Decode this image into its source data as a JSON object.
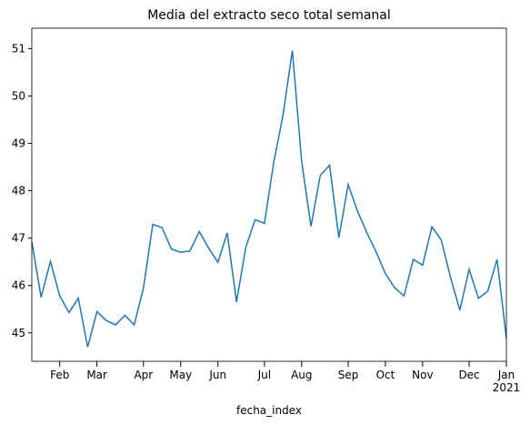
{
  "chart_data": {
    "type": "line",
    "title": "Media del extracto seco total semanal",
    "xlabel": "fecha_index",
    "x": [
      "2020-01-12",
      "2020-01-19",
      "2020-01-26",
      "2020-02-02",
      "2020-02-09",
      "2020-02-16",
      "2020-02-23",
      "2020-03-01",
      "2020-03-08",
      "2020-03-15",
      "2020-03-22",
      "2020-03-29",
      "2020-04-05",
      "2020-04-12",
      "2020-04-19",
      "2020-04-26",
      "2020-05-03",
      "2020-05-10",
      "2020-05-17",
      "2020-05-24",
      "2020-05-31",
      "2020-06-07",
      "2020-06-14",
      "2020-06-21",
      "2020-06-28",
      "2020-07-05",
      "2020-07-12",
      "2020-07-19",
      "2020-07-26",
      "2020-08-02",
      "2020-08-09",
      "2020-08-16",
      "2020-08-23",
      "2020-08-30",
      "2020-09-06",
      "2020-09-13",
      "2020-09-20",
      "2020-09-27",
      "2020-10-04",
      "2020-10-11",
      "2020-10-18",
      "2020-10-25",
      "2020-11-01",
      "2020-11-08",
      "2020-11-15",
      "2020-11-22",
      "2020-11-29",
      "2020-12-06",
      "2020-12-13",
      "2020-12-20",
      "2020-12-27",
      "2021-01-03"
    ],
    "series": [
      {
        "color": "#1f77b4",
        "values": [
          46.92,
          45.75,
          46.51,
          45.78,
          45.43,
          45.73,
          44.7,
          45.45,
          45.26,
          45.17,
          45.37,
          45.17,
          45.95,
          47.29,
          47.22,
          46.77,
          46.7,
          46.73,
          47.14,
          46.79,
          46.49,
          47.11,
          45.65,
          46.81,
          47.39,
          47.31,
          48.6,
          49.6,
          50.96,
          48.62,
          47.25,
          48.32,
          48.54,
          47.01,
          48.13,
          47.57,
          47.12,
          46.71,
          46.25,
          45.95,
          45.78,
          46.55,
          46.43,
          47.24,
          46.96,
          46.17,
          45.48,
          46.34,
          45.73,
          45.88,
          46.55,
          44.89
        ]
      }
    ],
    "xlim": [
      "2020-01-12",
      "2021-01-03"
    ],
    "xticks": [
      {
        "value": "2020-02-02",
        "label": "Feb"
      },
      {
        "value": "2020-03-01",
        "label": "Mar"
      },
      {
        "value": "2020-04-05",
        "label": "Apr"
      },
      {
        "value": "2020-05-03",
        "label": "May"
      },
      {
        "value": "2020-05-31",
        "label": "Jun"
      },
      {
        "value": "2020-07-05",
        "label": "Jul"
      },
      {
        "value": "2020-08-02",
        "label": "Aug"
      },
      {
        "value": "2020-09-06",
        "label": "Sep"
      },
      {
        "value": "2020-10-04",
        "label": "Oct"
      },
      {
        "value": "2020-11-01",
        "label": "Nov"
      },
      {
        "value": "2020-12-06",
        "label": "Dec"
      },
      {
        "value": "2021-01-03",
        "label": "Jan\n2021"
      }
    ],
    "ylim": [
      44.4,
      51.43
    ],
    "yticks": [
      45,
      46,
      47,
      48,
      49,
      50,
      51
    ]
  }
}
